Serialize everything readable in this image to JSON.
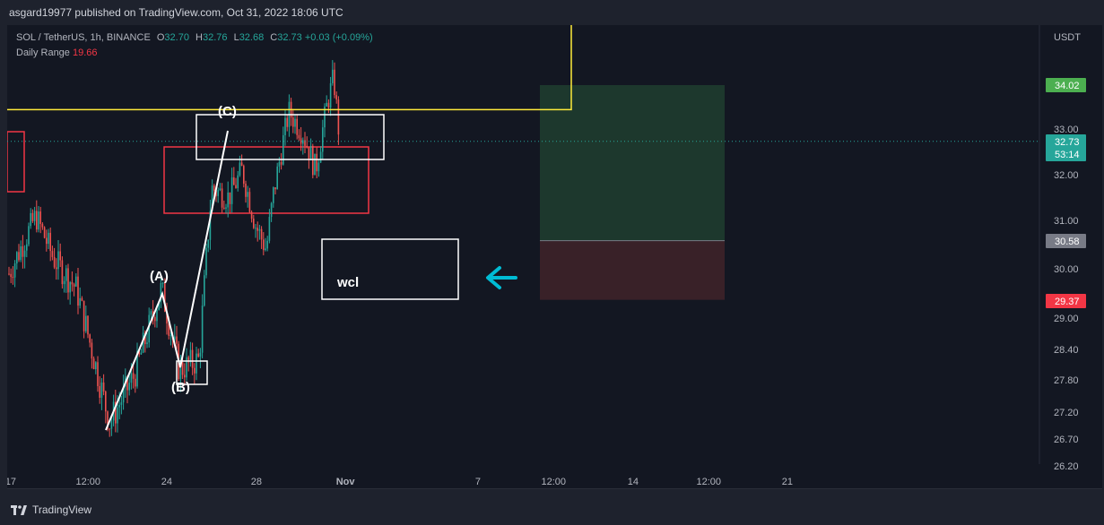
{
  "header": {
    "published_text": "asgard19977 published on TradingView.com, Oct 31, 2022 18:06 UTC"
  },
  "legend": {
    "symbol": "SOL / TetherUS, 1h, BINANCE",
    "open_label": "O",
    "open": "32.70",
    "high_label": "H",
    "high": "32.76",
    "low_label": "L",
    "low": "32.68",
    "close_label": "C",
    "close": "32.73",
    "change": "+0.03 (+0.09%)",
    "indicator_name": "Daily Range",
    "indicator_value": "19.66"
  },
  "footer": {
    "brand": "TradingView"
  },
  "colors": {
    "up": "#26a69a",
    "down": "#ef5350",
    "yellow": "#ffeb3b",
    "profit_zone": "#1e3a2e",
    "loss_zone": "#3b2229",
    "arrow": "#00bcd4",
    "target_badge": "#4caf50",
    "stop_badge": "#f23645"
  },
  "chart_data": {
    "type": "candlestick",
    "symbol": "SOL/USDT",
    "timeframe": "1h",
    "currency_label": "USDT",
    "y_ticks": [
      "34.02",
      "33.00",
      "32.00",
      "31.00",
      "30.00",
      "29.00",
      "28.40",
      "27.80",
      "27.20",
      "26.70",
      "26.20"
    ],
    "x_ticks": [
      "17",
      "12:00",
      "24",
      "28",
      "Nov",
      "7",
      "12:00",
      "14",
      "12:00",
      "21"
    ],
    "price_badges": [
      {
        "value": "34.02",
        "role": "target",
        "color": "#4caf50"
      },
      {
        "value": "32.73",
        "sub": "53:14",
        "role": "last-price",
        "color": "#26a69a"
      },
      {
        "value": "30.58",
        "role": "entry",
        "color": "#787b86"
      },
      {
        "value": "29.37",
        "role": "stop",
        "color": "#f23645"
      }
    ],
    "wave_labels": [
      "(A)",
      "(B)",
      "(C)"
    ],
    "annotation_text": "wcl",
    "close_price_line": 32.73,
    "yellow_level": 33.45,
    "position": {
      "target": 34.02,
      "entry": 30.58,
      "stop": 29.37
    }
  }
}
